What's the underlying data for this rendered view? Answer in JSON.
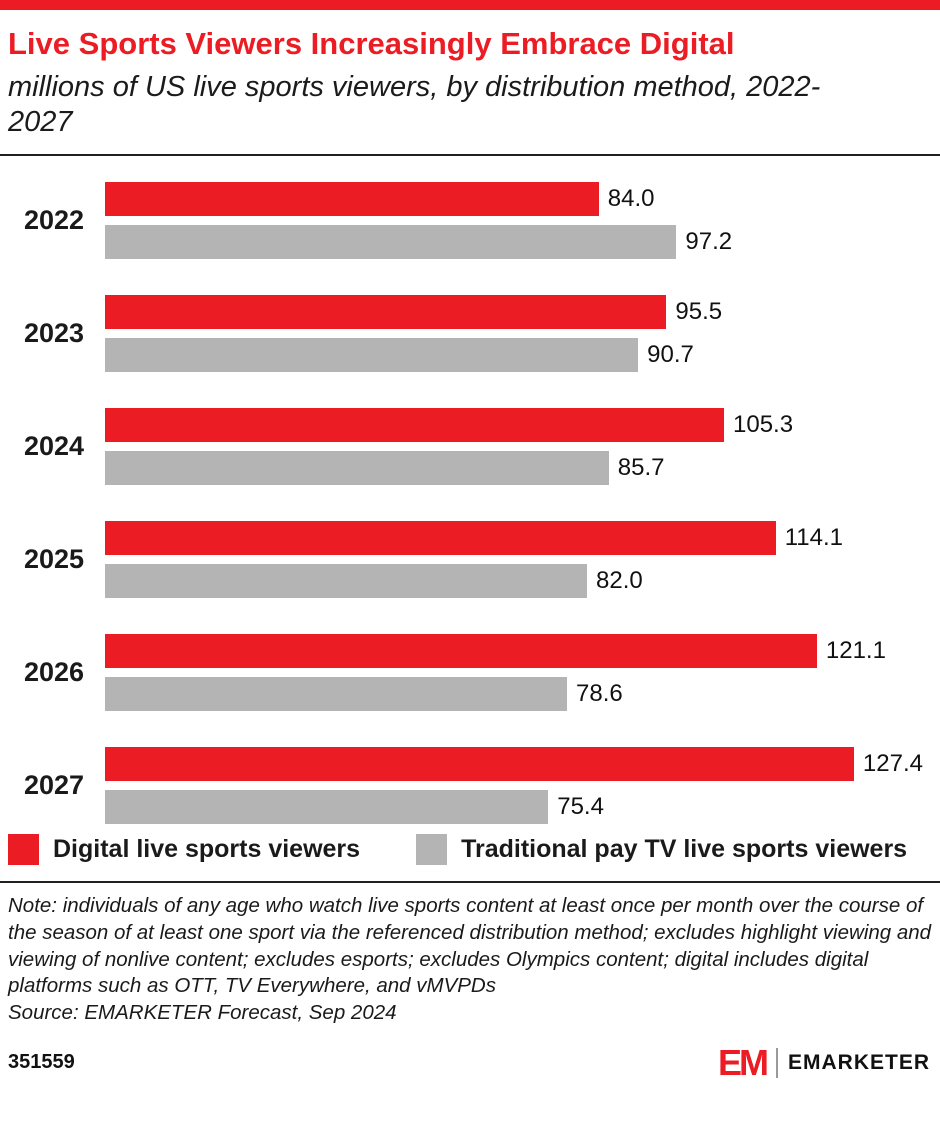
{
  "chart_data": {
    "type": "bar",
    "orientation": "horizontal",
    "title": "Live Sports Viewers Increasingly Embrace Digital",
    "subtitle": "millions of US live sports viewers, by distribution method, 2022-2027",
    "categories": [
      "2022",
      "2023",
      "2024",
      "2025",
      "2026",
      "2027"
    ],
    "series": [
      {
        "name": "Digital live sports viewers",
        "color": "#ec1c24",
        "values": [
          84.0,
          95.5,
          105.3,
          114.1,
          121.1,
          127.4
        ]
      },
      {
        "name": "Traditional pay TV live sports viewers",
        "color": "#b4b4b4",
        "values": [
          97.2,
          90.7,
          85.7,
          82.0,
          78.6,
          75.4
        ]
      }
    ],
    "xlim": [
      0,
      140
    ],
    "value_labels": true,
    "value_decimals": 1,
    "legend_position": "bottom",
    "grid": false
  },
  "note": "Note: individuals of any age who watch live sports content at least once per month over the course of the season of at least one sport via the referenced distribution method; excludes highlight viewing and viewing of nonlive content; excludes esports; excludes Olympics content; digital includes digital platforms such as OTT, TV Everywhere, and vMVPDs",
  "source": "Source: EMARKETER Forecast, Sep 2024",
  "footer": {
    "chart_id": "351559",
    "brand_mark": "EM",
    "brand_name": "EMARKETER"
  },
  "colors": {
    "accent_red": "#ec1c24",
    "bar_gray": "#b4b4b4",
    "text_dark": "#1a1a1a"
  }
}
